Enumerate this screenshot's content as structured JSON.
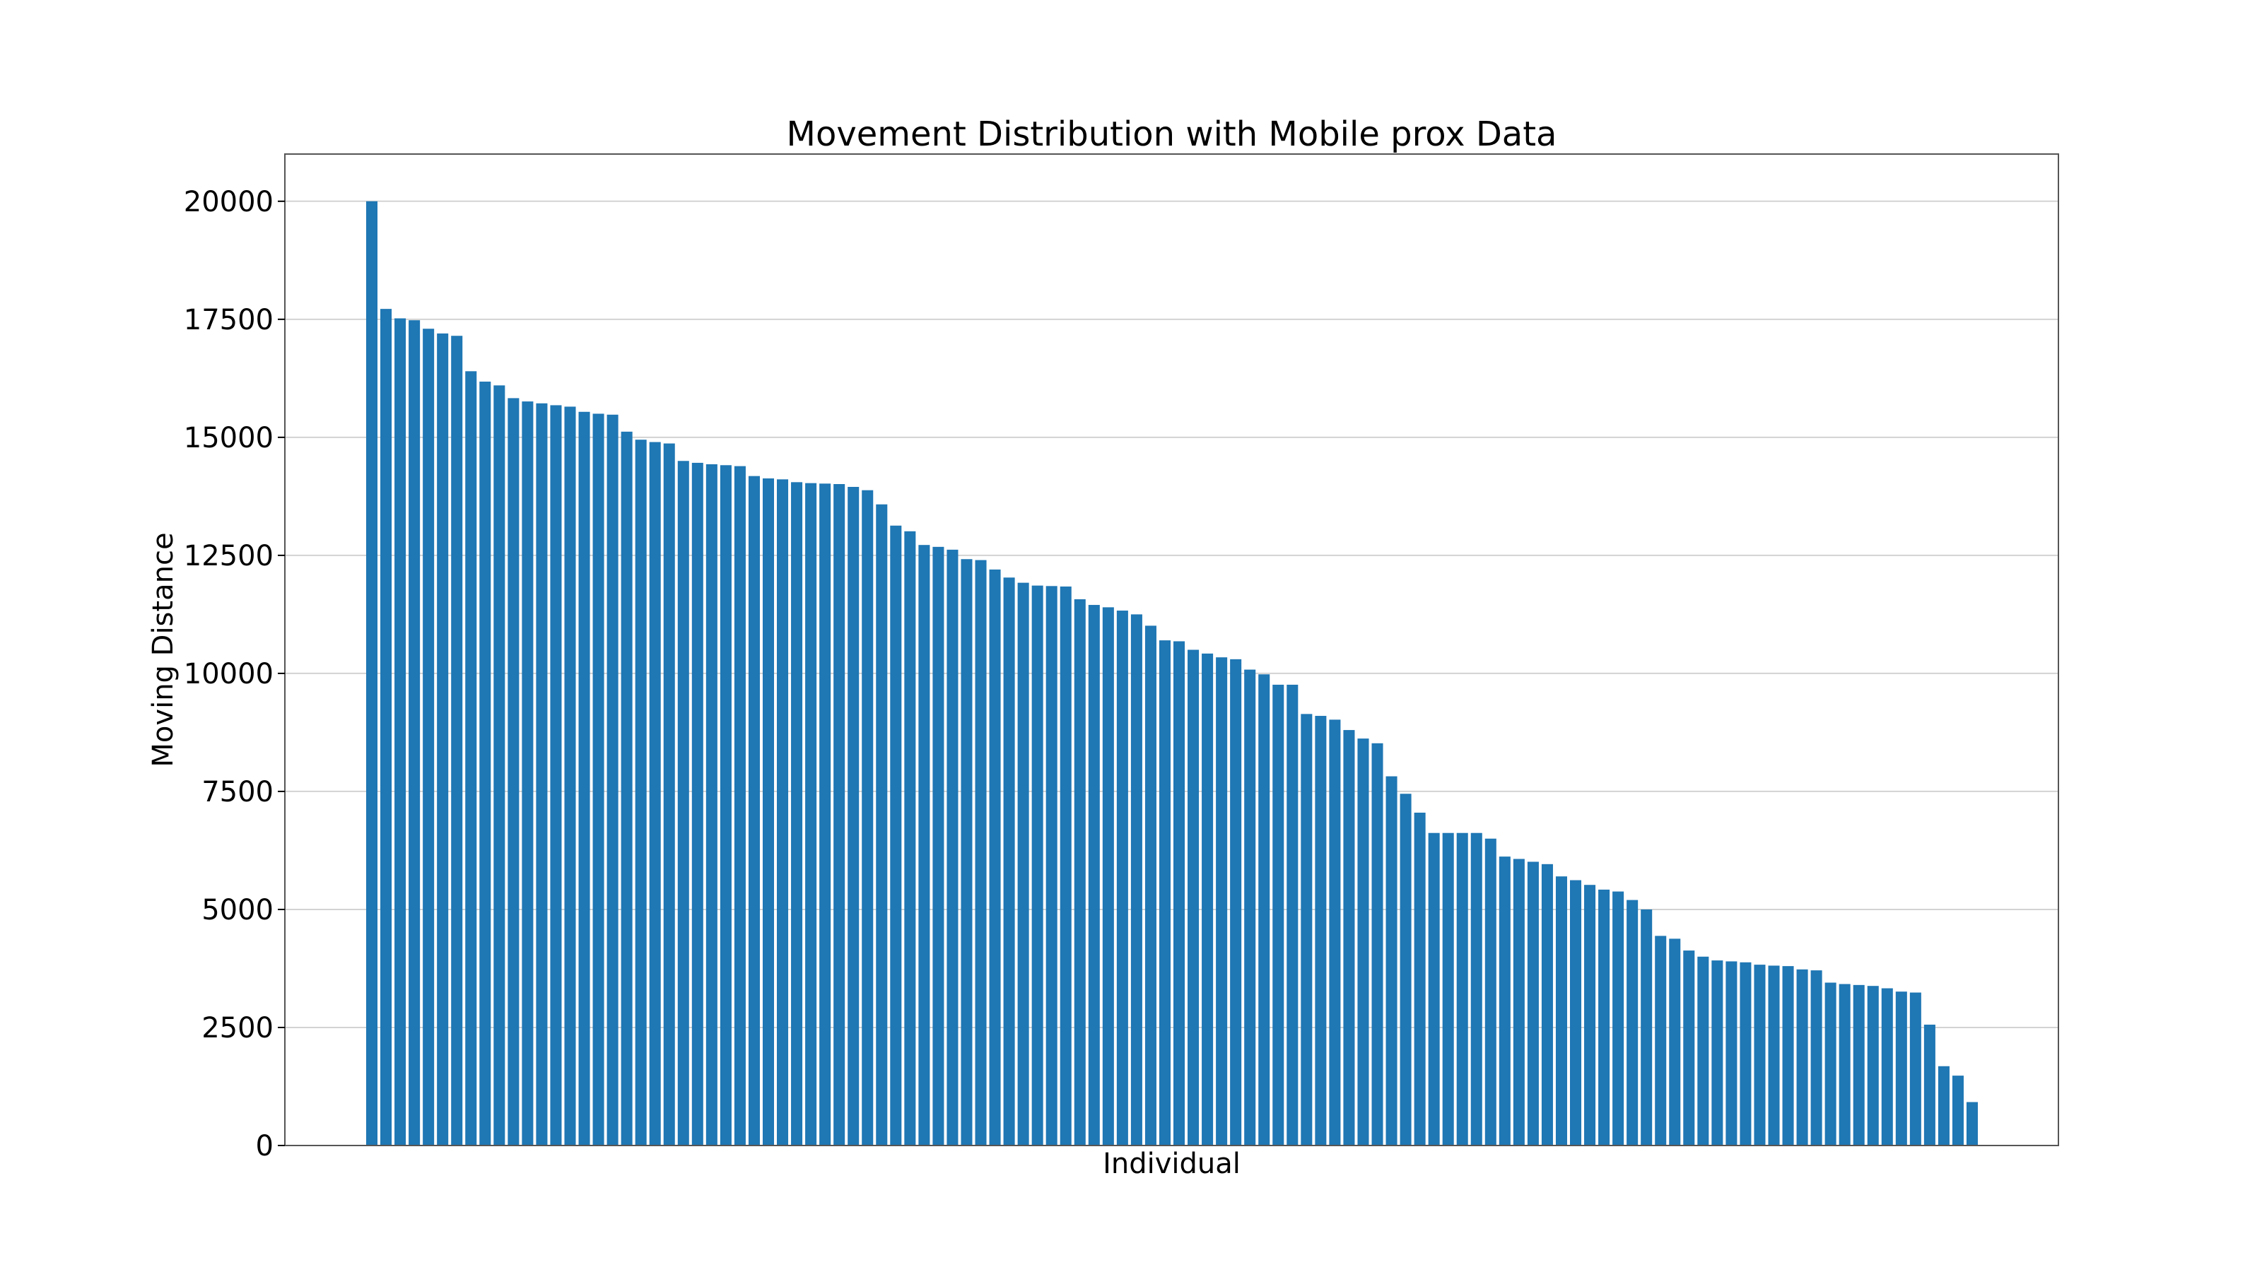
{
  "chart_data": {
    "type": "bar",
    "title": "Movement Distribution with Mobile prox Data",
    "xlabel": "Individual",
    "ylabel": "Moving Distance",
    "ylim": [
      0,
      21000
    ],
    "yticks": [
      0,
      2500,
      5000,
      7500,
      10000,
      12500,
      15000,
      17500,
      20000
    ],
    "grid": "y",
    "bar_color": "#1f77b4",
    "values": [
      20000,
      17720,
      17520,
      17480,
      17300,
      17200,
      17150,
      16400,
      16180,
      16100,
      15830,
      15760,
      15720,
      15680,
      15650,
      15540,
      15500,
      15480,
      15120,
      14950,
      14900,
      14870,
      14500,
      14460,
      14430,
      14410,
      14390,
      14180,
      14130,
      14110,
      14050,
      14030,
      14020,
      14010,
      13950,
      13880,
      13580,
      13130,
      13010,
      12720,
      12680,
      12620,
      12420,
      12400,
      12200,
      12030,
      11920,
      11860,
      11850,
      11840,
      11570,
      11450,
      11400,
      11330,
      11250,
      11010,
      10700,
      10680,
      10500,
      10420,
      10340,
      10300,
      10080,
      9980,
      9760,
      9760,
      9140,
      9100,
      9020,
      8800,
      8620,
      8520,
      7820,
      7450,
      7050,
      6620,
      6620,
      6620,
      6620,
      6500,
      6120,
      6070,
      6010,
      5960,
      5700,
      5620,
      5520,
      5420,
      5380,
      5200,
      5000,
      4440,
      4380,
      4130,
      4000,
      3920,
      3900,
      3880,
      3830,
      3810,
      3800,
      3730,
      3710,
      3450,
      3420,
      3400,
      3380,
      3330,
      3260,
      3240,
      2560,
      1680,
      1480,
      920
    ]
  }
}
